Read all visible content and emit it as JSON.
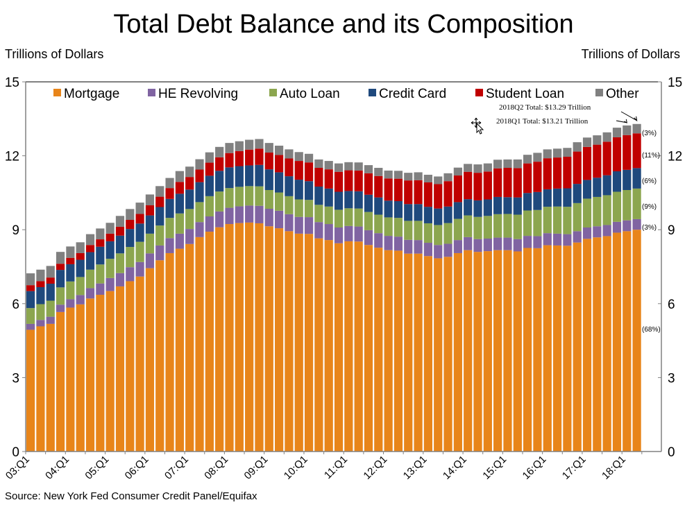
{
  "page": {
    "title": "Total Debt Balance and its Composition",
    "unit_left": "Trillions of Dollars",
    "unit_right": "Trillions of Dollars",
    "source": "Source: New York Fed Consumer Credit Panel/Equifax"
  },
  "chart_data": {
    "type": "bar",
    "stacked": true,
    "title": "Total Debt Balance and its Composition",
    "xlabel": "",
    "ylabel": "Trillions of Dollars",
    "ylim": [
      0,
      15
    ],
    "yticks": [
      0,
      3,
      6,
      9,
      12,
      15
    ],
    "grid": false,
    "legend_position": "top",
    "x_tick_labels": [
      "03:Q1",
      "04:Q1",
      "05:Q1",
      "06:Q1",
      "07:Q1",
      "08:Q1",
      "09:Q1",
      "10:Q1",
      "11:Q1",
      "12:Q1",
      "13:Q1",
      "14:Q1",
      "15:Q1",
      "16:Q1",
      "17:Q1",
      "18:Q1"
    ],
    "categories": [
      "2003Q1",
      "2003Q2",
      "2003Q3",
      "2003Q4",
      "2004Q1",
      "2004Q2",
      "2004Q3",
      "2004Q4",
      "2005Q1",
      "2005Q2",
      "2005Q3",
      "2005Q4",
      "2006Q1",
      "2006Q2",
      "2006Q3",
      "2006Q4",
      "2007Q1",
      "2007Q2",
      "2007Q3",
      "2007Q4",
      "2008Q1",
      "2008Q2",
      "2008Q3",
      "2008Q4",
      "2009Q1",
      "2009Q2",
      "2009Q3",
      "2009Q4",
      "2010Q1",
      "2010Q2",
      "2010Q3",
      "2010Q4",
      "2011Q1",
      "2011Q2",
      "2011Q3",
      "2011Q4",
      "2012Q1",
      "2012Q2",
      "2012Q3",
      "2012Q4",
      "2013Q1",
      "2013Q2",
      "2013Q3",
      "2013Q4",
      "2014Q1",
      "2014Q2",
      "2014Q3",
      "2014Q4",
      "2015Q1",
      "2015Q2",
      "2015Q3",
      "2015Q4",
      "2016Q1",
      "2016Q2",
      "2016Q3",
      "2016Q4",
      "2017Q1",
      "2017Q2",
      "2017Q3",
      "2017Q4",
      "2018Q1",
      "2018Q2"
    ],
    "series": [
      {
        "name": "Mortgage",
        "color": "#E8851A",
        "values": [
          4.94,
          5.08,
          5.18,
          5.66,
          5.84,
          5.97,
          6.21,
          6.36,
          6.51,
          6.7,
          6.91,
          7.1,
          7.44,
          7.76,
          8.05,
          8.23,
          8.42,
          8.7,
          8.92,
          9.1,
          9.23,
          9.27,
          9.29,
          9.26,
          9.14,
          9.06,
          8.94,
          8.84,
          8.83,
          8.65,
          8.58,
          8.45,
          8.53,
          8.52,
          8.38,
          8.27,
          8.17,
          8.15,
          8.03,
          8.03,
          7.93,
          7.84,
          7.9,
          8.05,
          8.17,
          8.1,
          8.13,
          8.17,
          8.17,
          8.12,
          8.26,
          8.25,
          8.37,
          8.36,
          8.35,
          8.48,
          8.63,
          8.69,
          8.74,
          8.88,
          8.94,
          9.0
        ]
      },
      {
        "name": "HE Revolving",
        "color": "#8064A2",
        "values": [
          0.24,
          0.26,
          0.29,
          0.3,
          0.34,
          0.38,
          0.42,
          0.46,
          0.53,
          0.54,
          0.57,
          0.59,
          0.6,
          0.6,
          0.61,
          0.61,
          0.61,
          0.61,
          0.62,
          0.64,
          0.66,
          0.68,
          0.69,
          0.71,
          0.71,
          0.71,
          0.69,
          0.68,
          0.68,
          0.66,
          0.65,
          0.64,
          0.62,
          0.61,
          0.6,
          0.59,
          0.58,
          0.57,
          0.56,
          0.55,
          0.54,
          0.54,
          0.53,
          0.53,
          0.53,
          0.52,
          0.51,
          0.51,
          0.51,
          0.5,
          0.49,
          0.49,
          0.49,
          0.48,
          0.47,
          0.46,
          0.46,
          0.45,
          0.45,
          0.44,
          0.44,
          0.43
        ]
      },
      {
        "name": "Auto Loan",
        "color": "#8CA64F",
        "values": [
          0.64,
          0.64,
          0.65,
          0.7,
          0.72,
          0.73,
          0.75,
          0.77,
          0.78,
          0.8,
          0.82,
          0.82,
          0.8,
          0.81,
          0.82,
          0.82,
          0.81,
          0.81,
          0.82,
          0.81,
          0.8,
          0.79,
          0.79,
          0.79,
          0.76,
          0.74,
          0.73,
          0.71,
          0.7,
          0.7,
          0.71,
          0.72,
          0.72,
          0.73,
          0.74,
          0.75,
          0.75,
          0.76,
          0.77,
          0.78,
          0.79,
          0.81,
          0.84,
          0.86,
          0.88,
          0.9,
          0.92,
          0.95,
          0.96,
          0.99,
          1.03,
          1.06,
          1.07,
          1.1,
          1.11,
          1.14,
          1.17,
          1.19,
          1.21,
          1.22,
          1.23,
          1.24
        ]
      },
      {
        "name": "Credit Card",
        "color": "#1F497D",
        "values": [
          0.69,
          0.69,
          0.69,
          0.71,
          0.7,
          0.7,
          0.71,
          0.72,
          0.71,
          0.72,
          0.73,
          0.74,
          0.74,
          0.75,
          0.77,
          0.8,
          0.79,
          0.81,
          0.83,
          0.84,
          0.84,
          0.84,
          0.84,
          0.87,
          0.84,
          0.82,
          0.81,
          0.8,
          0.76,
          0.74,
          0.73,
          0.73,
          0.7,
          0.7,
          0.7,
          0.7,
          0.68,
          0.68,
          0.68,
          0.68,
          0.67,
          0.67,
          0.67,
          0.68,
          0.66,
          0.67,
          0.67,
          0.7,
          0.68,
          0.7,
          0.71,
          0.73,
          0.71,
          0.73,
          0.75,
          0.78,
          0.76,
          0.78,
          0.81,
          0.83,
          0.82,
          0.83
        ]
      },
      {
        "name": "Student Loan",
        "color": "#C00000",
        "values": [
          0.24,
          0.24,
          0.25,
          0.25,
          0.26,
          0.27,
          0.29,
          0.3,
          0.31,
          0.36,
          0.37,
          0.39,
          0.41,
          0.42,
          0.44,
          0.48,
          0.51,
          0.51,
          0.53,
          0.55,
          0.58,
          0.61,
          0.64,
          0.66,
          0.68,
          0.7,
          0.72,
          0.76,
          0.76,
          0.76,
          0.78,
          0.81,
          0.84,
          0.84,
          0.87,
          0.87,
          0.9,
          0.91,
          0.96,
          0.97,
          0.99,
          0.99,
          1.03,
          1.08,
          1.11,
          1.12,
          1.13,
          1.16,
          1.19,
          1.19,
          1.2,
          1.23,
          1.26,
          1.26,
          1.28,
          1.31,
          1.34,
          1.34,
          1.36,
          1.38,
          1.41,
          1.41
        ]
      },
      {
        "name": "Other",
        "color": "#808080",
        "values": [
          0.48,
          0.47,
          0.47,
          0.48,
          0.46,
          0.44,
          0.44,
          0.44,
          0.44,
          0.44,
          0.44,
          0.46,
          0.44,
          0.43,
          0.41,
          0.44,
          0.42,
          0.42,
          0.42,
          0.42,
          0.41,
          0.4,
          0.4,
          0.39,
          0.39,
          0.38,
          0.37,
          0.36,
          0.35,
          0.34,
          0.34,
          0.34,
          0.33,
          0.33,
          0.33,
          0.33,
          0.32,
          0.32,
          0.31,
          0.32,
          0.31,
          0.31,
          0.32,
          0.32,
          0.32,
          0.34,
          0.33,
          0.35,
          0.34,
          0.35,
          0.35,
          0.36,
          0.36,
          0.36,
          0.36,
          0.38,
          0.38,
          0.38,
          0.38,
          0.39,
          0.39,
          0.38
        ]
      }
    ],
    "annotations": [
      {
        "text": "2018Q2 Total: $13.29 Trillion",
        "points_to": "2018Q2"
      },
      {
        "text": "2018Q1 Total: $13.21 Trillion",
        "points_to": "2018Q1"
      }
    ],
    "share_labels": [
      {
        "series": "Other",
        "text": "(3%)"
      },
      {
        "series": "Student Loan",
        "text": "(11%)"
      },
      {
        "series": "Credit Card",
        "text": "(6%)"
      },
      {
        "series": "Auto Loan",
        "text": "(9%)"
      },
      {
        "series": "HE Revolving",
        "text": "(3%)"
      },
      {
        "series": "Mortgage",
        "text": "(68%)"
      }
    ]
  }
}
